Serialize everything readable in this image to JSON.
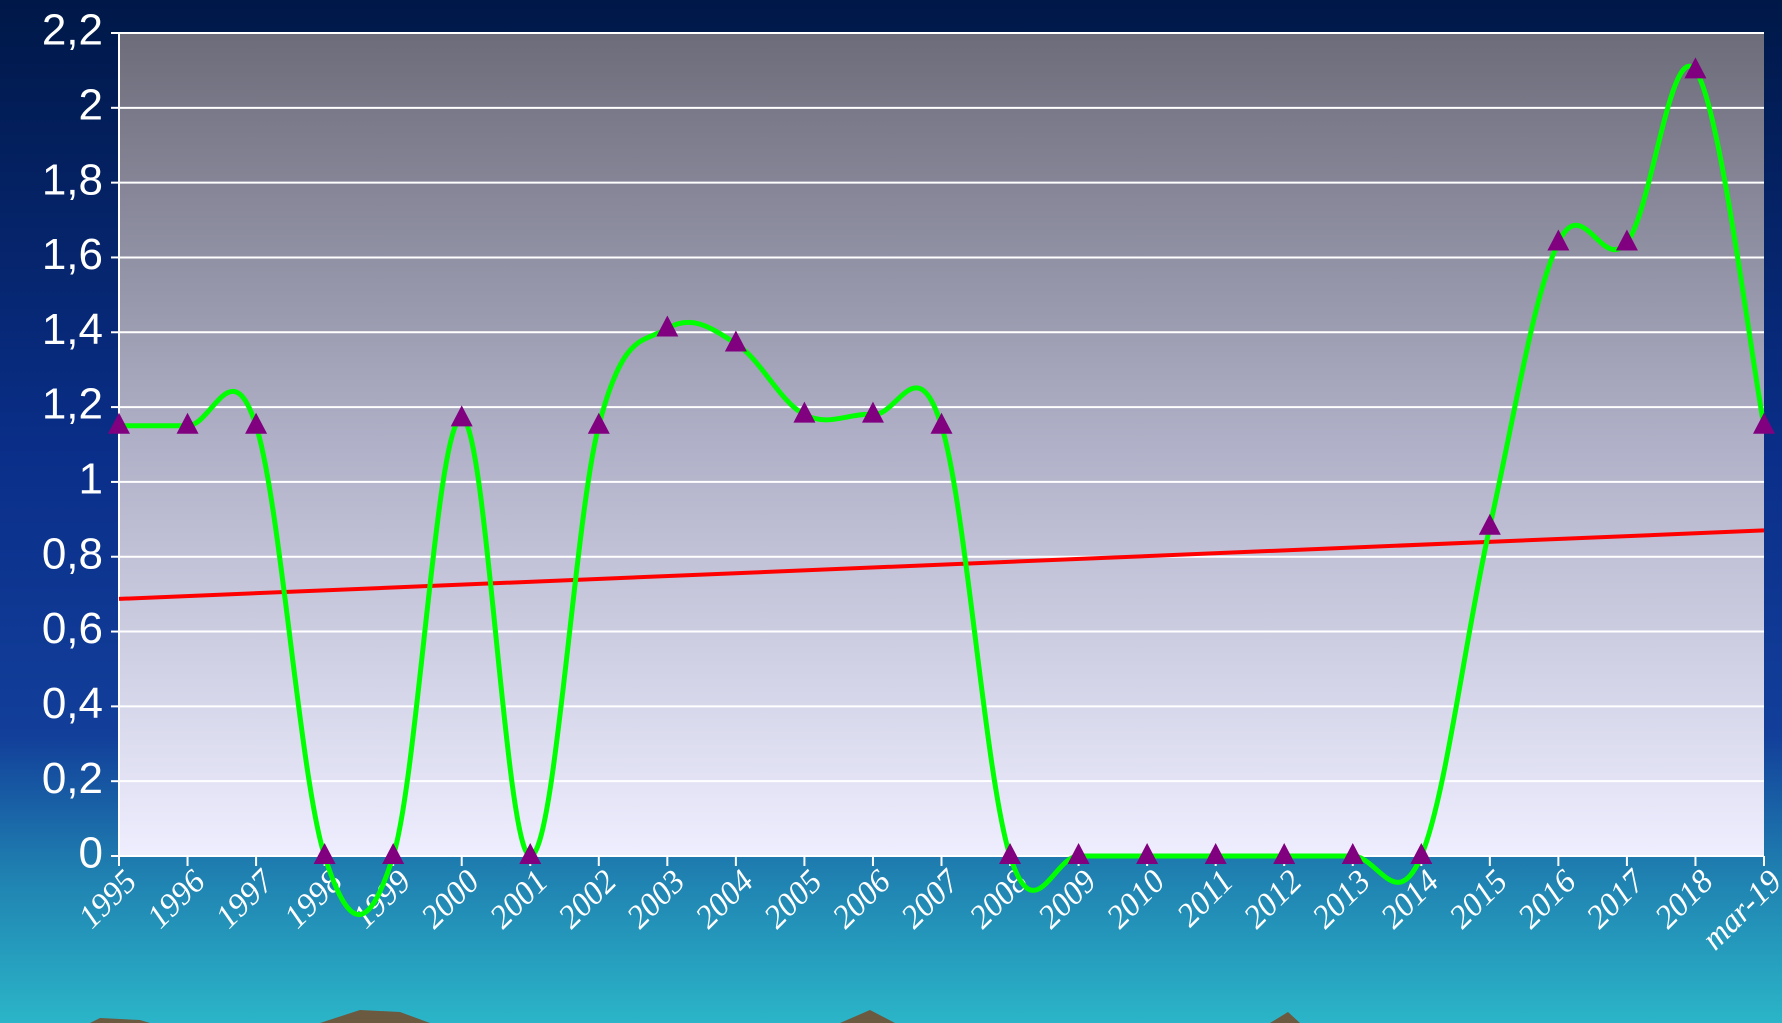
{
  "chart_data": {
    "type": "line",
    "categories": [
      "1995",
      "1996",
      "1997",
      "1998",
      "1999",
      "2000",
      "2001",
      "2002",
      "2003",
      "2004",
      "2005",
      "2006",
      "2007",
      "2008",
      "2009",
      "2010",
      "2011",
      "2012",
      "2013",
      "2014",
      "2015",
      "2016",
      "2017",
      "2018",
      "mar-19"
    ],
    "values": [
      1.15,
      1.15,
      1.15,
      0,
      0,
      1.17,
      0,
      1.15,
      1.41,
      1.37,
      1.18,
      1.18,
      1.15,
      0,
      0,
      0,
      0,
      0,
      0,
      0,
      0.88,
      1.64,
      1.64,
      2.1,
      1.15
    ],
    "color": "#00ff00",
    "marker_color": "#800080",
    "trendline": "linear",
    "trendline_color": "#ff0000",
    "ylim": [
      0,
      2.2
    ],
    "yticks": [
      0,
      {
        "value": 0.2,
        "label": "0,2"
      },
      {
        "value": 0.4,
        "label": "0,4"
      },
      {
        "value": 0.6,
        "label": "0,6"
      },
      {
        "value": 0.8,
        "label": "0,8"
      },
      1,
      {
        "value": 1.2,
        "label": "1,2"
      },
      {
        "value": 1.4,
        "label": "1,4"
      },
      {
        "value": 1.6,
        "label": "1,6"
      },
      {
        "value": 1.8,
        "label": "1,8"
      },
      2,
      {
        "value": 2.2,
        "label": "2,2"
      }
    ],
    "grid": true
  }
}
